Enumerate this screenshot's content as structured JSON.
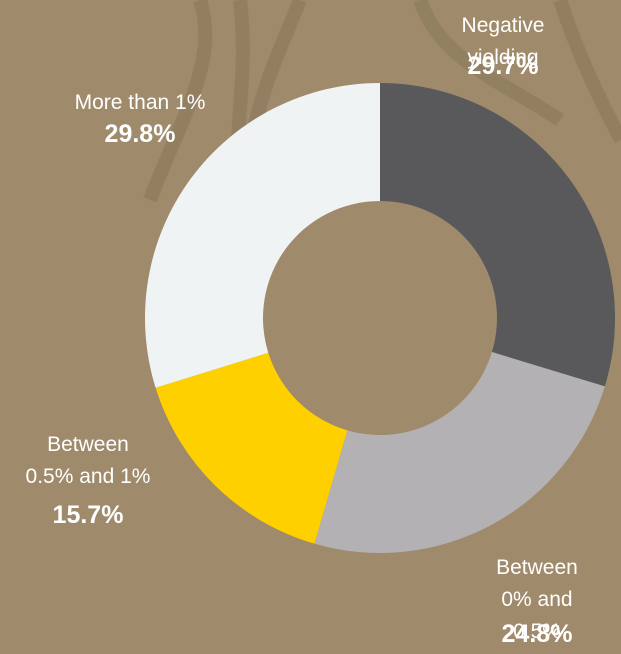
{
  "chart_data": {
    "type": "donut",
    "categories": [
      "Negative yielding",
      "Between\n0% and 0.5%",
      "Between\n0.5% and 1%",
      "More than 1%"
    ],
    "values": [
      29.7,
      24.8,
      15.7,
      29.8
    ],
    "value_labels": [
      "29.7%",
      "24.8%",
      "15.7%",
      "29.8%"
    ],
    "colors": [
      "#59595b",
      "#b3b1b4",
      "#ffd000",
      "#f0f3f4"
    ]
  }
}
